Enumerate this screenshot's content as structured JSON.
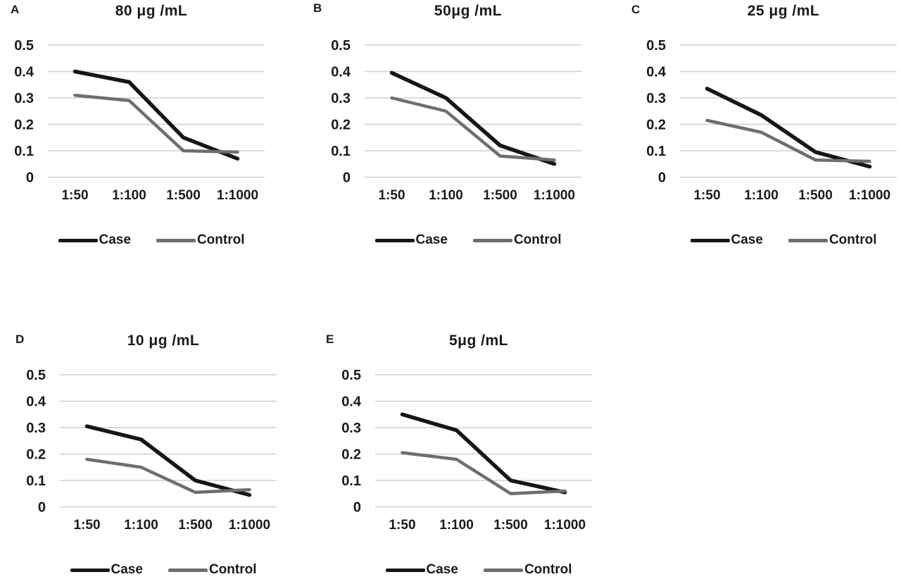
{
  "chart_data": [
    {
      "type": "line",
      "panel_label": "A",
      "title": "80 μg /mL",
      "categories": [
        "1:50",
        "1:100",
        "1:500",
        "1:1000"
      ],
      "yticks": [
        "0.5",
        "0.4",
        "0.3",
        "0.2",
        "0.1",
        "0"
      ],
      "ylim": [
        0,
        0.5
      ],
      "grid": true,
      "legend_position": "bottom",
      "series": [
        {
          "name": "Case",
          "color": "#161616",
          "values": [
            0.4,
            0.36,
            0.15,
            0.07
          ]
        },
        {
          "name": "Control",
          "color": "#6e6e6e",
          "values": [
            0.31,
            0.29,
            0.1,
            0.095
          ]
        }
      ]
    },
    {
      "type": "line",
      "panel_label": "B",
      "title": "50μg /mL",
      "categories": [
        "1:50",
        "1:100",
        "1:500",
        "1:1000"
      ],
      "yticks": [
        "0.5",
        "0.4",
        "0.3",
        "0.2",
        "0.1",
        "0"
      ],
      "ylim": [
        0,
        0.5
      ],
      "grid": true,
      "legend_position": "bottom",
      "series": [
        {
          "name": "Case",
          "color": "#161616",
          "values": [
            0.395,
            0.3,
            0.12,
            0.05
          ]
        },
        {
          "name": "Control",
          "color": "#6e6e6e",
          "values": [
            0.3,
            0.25,
            0.08,
            0.065
          ]
        }
      ]
    },
    {
      "type": "line",
      "panel_label": "C",
      "title": "25 μg /mL",
      "categories": [
        "1:50",
        "1:100",
        "1:500",
        "1:1000"
      ],
      "yticks": [
        "0.5",
        "0.4",
        "0.3",
        "0.2",
        "0.1",
        "0"
      ],
      "ylim": [
        0,
        0.5
      ],
      "grid": true,
      "legend_position": "bottom",
      "series": [
        {
          "name": "Case",
          "color": "#161616",
          "values": [
            0.335,
            0.235,
            0.095,
            0.04
          ]
        },
        {
          "name": "Control",
          "color": "#6e6e6e",
          "values": [
            0.215,
            0.17,
            0.065,
            0.06
          ]
        }
      ]
    },
    {
      "type": "line",
      "panel_label": "D",
      "title": "10 μg /mL",
      "categories": [
        "1:50",
        "1:100",
        "1:500",
        "1:1000"
      ],
      "yticks": [
        "0.5",
        "0.4",
        "0.3",
        "0.2",
        "0.1",
        "0"
      ],
      "ylim": [
        0,
        0.5
      ],
      "grid": true,
      "legend_position": "bottom",
      "series": [
        {
          "name": "Case",
          "color": "#161616",
          "values": [
            0.305,
            0.255,
            0.1,
            0.045
          ]
        },
        {
          "name": "Control",
          "color": "#6e6e6e",
          "values": [
            0.18,
            0.15,
            0.055,
            0.065
          ]
        }
      ]
    },
    {
      "type": "line",
      "panel_label": "E",
      "title": "5μg /mL",
      "categories": [
        "1:50",
        "1:100",
        "1:500",
        "1:1000"
      ],
      "yticks": [
        "0.5",
        "0.4",
        "0.3",
        "0.2",
        "0.1",
        "0"
      ],
      "ylim": [
        0,
        0.5
      ],
      "grid": true,
      "legend_position": "bottom",
      "series": [
        {
          "name": "Case",
          "color": "#161616",
          "values": [
            0.35,
            0.29,
            0.1,
            0.055
          ]
        },
        {
          "name": "Control",
          "color": "#6e6e6e",
          "values": [
            0.205,
            0.18,
            0.05,
            0.06
          ]
        }
      ]
    }
  ]
}
